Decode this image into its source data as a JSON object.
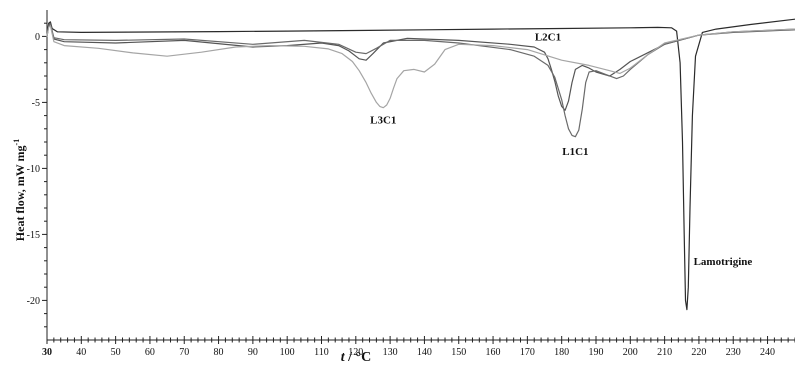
{
  "chart_data": {
    "type": "line",
    "xlabel_italic": "t",
    "xlabel_unit": " / °C",
    "ylabel": "Heat flow, mW mg",
    "ylabel_sup": "-1",
    "xlim": [
      30,
      248
    ],
    "ylim": [
      -23,
      2
    ],
    "x_ticks": [
      30,
      40,
      50,
      60,
      70,
      80,
      90,
      100,
      110,
      120,
      130,
      140,
      150,
      160,
      170,
      180,
      190,
      200,
      210,
      220,
      230,
      240
    ],
    "y_ticks": [
      0,
      -5,
      -10,
      -15,
      -20
    ],
    "grid": false,
    "series": [
      {
        "name": "Lamotrigine",
        "color": "#2b2b2b",
        "x": [
          30,
          30.5,
          31,
          31.5,
          33,
          40,
          60,
          80,
          100,
          120,
          140,
          160,
          180,
          200,
          208,
          212,
          213.5,
          214.5,
          215.2,
          215.7,
          216.1,
          216.5,
          216.9,
          217.4,
          218.1,
          219,
          221,
          225,
          235,
          248
        ],
        "y": [
          0,
          1,
          1.1,
          0.6,
          0.35,
          0.3,
          0.33,
          0.36,
          0.4,
          0.45,
          0.5,
          0.55,
          0.6,
          0.65,
          0.68,
          0.65,
          0.4,
          -2,
          -8,
          -15,
          -20,
          -20.7,
          -19,
          -13,
          -6,
          -1.5,
          0.3,
          0.55,
          0.9,
          1.3
        ]
      },
      {
        "name": "L2C1",
        "color": "#555555",
        "x": [
          30,
          30.5,
          31,
          32,
          35,
          50,
          70,
          90,
          100,
          110,
          115,
          118,
          121,
          123,
          125,
          128,
          135,
          150,
          165,
          172,
          175,
          176,
          177,
          178,
          179,
          180,
          181,
          182,
          183,
          184,
          186,
          188,
          190,
          194,
          197,
          200,
          210,
          220,
          230,
          248
        ],
        "y": [
          0,
          0.9,
          1.0,
          -0.2,
          -0.4,
          -0.5,
          -0.3,
          -0.8,
          -0.7,
          -0.5,
          -0.7,
          -1.1,
          -1.7,
          -1.8,
          -1.3,
          -0.5,
          -0.15,
          -0.3,
          -0.6,
          -0.8,
          -1.2,
          -1.7,
          -2.5,
          -3.4,
          -4.5,
          -5.3,
          -5.6,
          -4.9,
          -3.5,
          -2.5,
          -2.2,
          -2.4,
          -2.7,
          -3.0,
          -2.5,
          -1.9,
          -0.6,
          0.1,
          0.3,
          0.5
        ]
      },
      {
        "name": "L1C1",
        "color": "#6a6a6a",
        "x": [
          30,
          30.5,
          31,
          32,
          35,
          50,
          70,
          90,
          105,
          115,
          120,
          123,
          126,
          130,
          140,
          150,
          165,
          172,
          176,
          178,
          180,
          181,
          182,
          183,
          184,
          185,
          186,
          187,
          188,
          190,
          193,
          196,
          198,
          200,
          205,
          210,
          220,
          230,
          248
        ],
        "y": [
          0,
          0.8,
          0.9,
          -0.1,
          -0.25,
          -0.3,
          -0.2,
          -0.6,
          -0.3,
          -0.6,
          -1.2,
          -1.3,
          -0.9,
          -0.3,
          -0.3,
          -0.5,
          -1.0,
          -1.5,
          -2.2,
          -3.1,
          -4.8,
          -6.0,
          -7.0,
          -7.5,
          -7.6,
          -7.1,
          -5.5,
          -3.5,
          -2.7,
          -2.6,
          -2.9,
          -3.2,
          -3.0,
          -2.5,
          -1.4,
          -0.6,
          0.1,
          0.35,
          0.55
        ]
      },
      {
        "name": "L3C1",
        "color": "#a5a5a5",
        "x": [
          30,
          30.5,
          31,
          32,
          35,
          45,
          55,
          65,
          75,
          85,
          95,
          105,
          112,
          116,
          119,
          121,
          123,
          124.5,
          126,
          127,
          128,
          129,
          130,
          131,
          132,
          134,
          137,
          140,
          143,
          146,
          150,
          160,
          170,
          180,
          188,
          194,
          197,
          200,
          205,
          210,
          220,
          230,
          248
        ],
        "y": [
          0,
          0.7,
          0.8,
          -0.4,
          -0.7,
          -0.9,
          -1.25,
          -1.5,
          -1.2,
          -0.8,
          -0.7,
          -0.75,
          -0.95,
          -1.3,
          -1.9,
          -2.6,
          -3.5,
          -4.3,
          -5.0,
          -5.3,
          -5.4,
          -5.2,
          -4.7,
          -3.9,
          -3.2,
          -2.6,
          -2.5,
          -2.7,
          -2.1,
          -1.0,
          -0.6,
          -0.7,
          -1.0,
          -1.8,
          -2.2,
          -2.6,
          -2.8,
          -2.4,
          -1.4,
          -0.5,
          0.1,
          0.35,
          0.55
        ]
      }
    ],
    "annotations": [
      {
        "label": "L2C1",
        "x": 176,
        "y": -0.3
      },
      {
        "label": "L3C1",
        "x": 128,
        "y": -6.6
      },
      {
        "label": "L1C1",
        "x": 184,
        "y": -9.0
      },
      {
        "label": "Lamotrigine",
        "x": 227,
        "y": -17.3
      }
    ]
  }
}
